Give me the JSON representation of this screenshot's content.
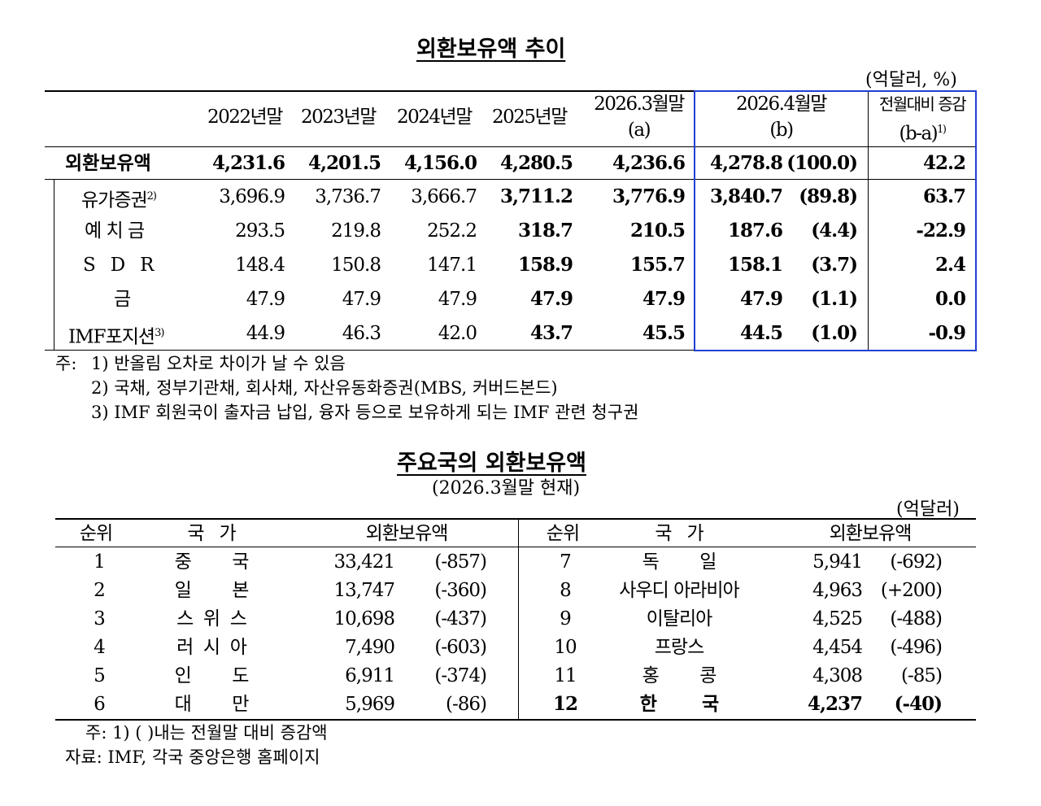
{
  "reserves": {
    "title": "외환보유액 추이",
    "unit": "(억달러, %)",
    "headers": {
      "c2022": "2022년말",
      "c2023": "2023년말",
      "c2024": "2024년말",
      "c2025": "2025년말",
      "mar_line1": "2026.3월말",
      "mar_line2": "(a)",
      "apr_line1": "2026.4월말",
      "apr_line2": "(b)",
      "chg_line1": "전월대비 증감",
      "chg_line2": "(b-a)",
      "chg_sup": "1)"
    },
    "rows": [
      {
        "label": "외환보유액",
        "sup": "",
        "v2022": "4,231.6",
        "v2023": "4,201.5",
        "v2024": "4,156.0",
        "v2025": "4,280.5",
        "mar": "4,236.6",
        "apr": "4,278.8",
        "share": "(100.0)",
        "chg": "42.2"
      },
      {
        "label": "유가증권",
        "sup": "2)",
        "v2022": "3,696.9",
        "v2023": "3,736.7",
        "v2024": "3,666.7",
        "v2025": "3,711.2",
        "mar": "3,776.9",
        "apr": "3,840.7",
        "share": "(89.8)",
        "chg": "63.7"
      },
      {
        "label": "예 치 금",
        "sup": "",
        "v2022": "293.5",
        "v2023": "219.8",
        "v2024": "252.2",
        "v2025": "318.7",
        "mar": "210.5",
        "apr": "187.6",
        "share": "(4.4)",
        "chg": "-22.9"
      },
      {
        "label": "S   D   R",
        "sup": "",
        "v2022": "148.4",
        "v2023": "150.8",
        "v2024": "147.1",
        "v2025": "158.9",
        "mar": "155.7",
        "apr": "158.1",
        "share": "(3.7)",
        "chg": "2.4"
      },
      {
        "label": "금",
        "sup": "",
        "v2022": "47.9",
        "v2023": "47.9",
        "v2024": "47.9",
        "v2025": "47.9",
        "mar": "47.9",
        "apr": "47.9",
        "share": "(1.1)",
        "chg": "0.0"
      },
      {
        "label": "IMF포지션",
        "sup": "3)",
        "v2022": "44.9",
        "v2023": "46.3",
        "v2024": "42.0",
        "v2025": "43.7",
        "mar": "45.5",
        "apr": "44.5",
        "share": "(1.0)",
        "chg": "-0.9"
      }
    ],
    "notes": {
      "prefix": "주:",
      "n1": "1) 반올림 오차로 차이가 날 수 있음",
      "n2": "2) 국채, 정부기관채, 회사채, 자산유동화증권(MBS, 커버드본드)",
      "n3": "3) IMF 회원국이 출자금 납입, 융자 등으로 보유하게 되는 IMF 관련 청구권"
    }
  },
  "ranking": {
    "title": "주요국의 외환보유액",
    "subtitle": "(2026.3월말 현재)",
    "unit": "(억달러)",
    "headers": {
      "rank": "순위",
      "country": "국   가",
      "amount": "외환보유액"
    },
    "rows": [
      {
        "rank": "1",
        "country": "중        국",
        "amount": "33,421",
        "change": "(-857)",
        "rank2": "7",
        "country2": "독        일",
        "amount2": "5,941",
        "change2": "(-692)"
      },
      {
        "rank": "2",
        "country": "일        본",
        "amount": "13,747",
        "change": "(-360)",
        "rank2": "8",
        "country2": "사우디 아라비아",
        "amount2": "4,963",
        "change2": "(+200)"
      },
      {
        "rank": "3",
        "country": "스  위  스",
        "amount": "10,698",
        "change": "(-437)",
        "rank2": "9",
        "country2": "이탈리아",
        "amount2": "4,525",
        "change2": "(-488)"
      },
      {
        "rank": "4",
        "country": "러  시  아",
        "amount": "7,490",
        "change": "(-603)",
        "rank2": "10",
        "country2": "프랑스",
        "amount2": "4,454",
        "change2": "(-496)"
      },
      {
        "rank": "5",
        "country": "인        도",
        "amount": "6,911",
        "change": "(-374)",
        "rank2": "11",
        "country2": "홍        콩",
        "amount2": "4,308",
        "change2": "(-85)"
      },
      {
        "rank": "6",
        "country": "대        만",
        "amount": "5,969",
        "change": "(-86)",
        "rank2": "12",
        "country2": "한        국",
        "amount2": "4,237",
        "change2": "(-40)"
      }
    ],
    "notes": {
      "n1": "주: 1) (   )내는 전월말 대비 증감액",
      "source": "자료: IMF, 각국 중앙은행 홈페이지"
    }
  }
}
